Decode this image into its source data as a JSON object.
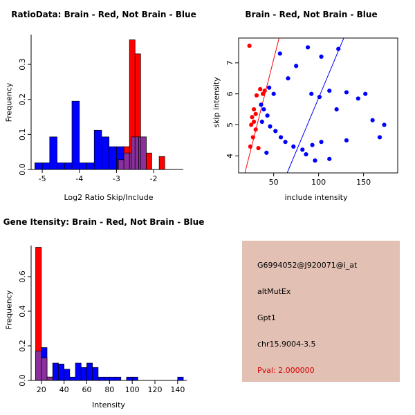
{
  "colors": {
    "brain_red": "#ff0000",
    "not_brain_blue": "#0000ff",
    "overlap_purple": "#8a2f9c",
    "axis_black": "#000000",
    "info_bg": "#e2c0b3",
    "pval_red": "#d40000"
  },
  "chart_data": [
    {
      "id": "ratio-hist",
      "type": "bar",
      "subtype": "overlaid-histogram",
      "title": "RatioData: Brain - Red, Not Brain - Blue",
      "xlabel": "Log2 Ratio Skip/Include",
      "ylabel": "Frequency",
      "xlim": [
        -5.3,
        -1.2
      ],
      "ylim": [
        0,
        0.385
      ],
      "xticks": [
        -5,
        -4,
        -3,
        -2
      ],
      "xticklabels": [
        "-5",
        "-4",
        "-3",
        "-2"
      ],
      "yticks": [
        0,
        0.1,
        0.2,
        0.3
      ],
      "yticklabels": [
        "0.0",
        "0.1",
        "0.2",
        "0.3"
      ],
      "grid": false,
      "box": false,
      "overlap_color": "#8a2f9c",
      "series": [
        {
          "name": "Not Brain",
          "color": "#0000ff",
          "bins": [
            [
              -5.2,
              -5.0,
              0.019
            ],
            [
              -5.0,
              -4.8,
              0.019
            ],
            [
              -4.8,
              -4.6,
              0.093
            ],
            [
              -4.6,
              -4.4,
              0.019
            ],
            [
              -4.4,
              -4.2,
              0.019
            ],
            [
              -4.2,
              -4.0,
              0.195
            ],
            [
              -4.0,
              -3.8,
              0.019
            ],
            [
              -3.8,
              -3.6,
              0.019
            ],
            [
              -3.6,
              -3.4,
              0.112
            ],
            [
              -3.4,
              -3.2,
              0.093
            ],
            [
              -3.2,
              -3.0,
              0.065
            ],
            [
              -3.0,
              -2.8,
              0.065
            ],
            [
              -2.8,
              -2.6,
              0.047
            ],
            [
              -2.6,
              -2.4,
              0.093
            ],
            [
              -2.4,
              -2.2,
              0.093
            ]
          ]
        },
        {
          "name": "Brain",
          "color": "#ff0000",
          "bins": [
            [
              -2.95,
              -2.8,
              0.028
            ],
            [
              -2.8,
              -2.65,
              0.065
            ],
            [
              -2.65,
              -2.5,
              0.37
            ],
            [
              -2.5,
              -2.35,
              0.33
            ],
            [
              -2.35,
              -2.2,
              0.093
            ],
            [
              -2.2,
              -2.05,
              0.047
            ],
            [
              -1.85,
              -1.7,
              0.037
            ]
          ]
        }
      ]
    },
    {
      "id": "intensity-scatter",
      "type": "scatter",
      "title": "Brain - Red, Not Brain - Blue",
      "xlabel": "include intensity",
      "ylabel": "skip intensity",
      "xlim": [
        11,
        188
      ],
      "ylim": [
        3.45,
        7.8
      ],
      "xticks": [
        50,
        100,
        150
      ],
      "xticklabels": [
        "50",
        "100",
        "150"
      ],
      "yticks": [
        4,
        5,
        6,
        7
      ],
      "yticklabels": [
        "4",
        "5",
        "6",
        "7"
      ],
      "grid": false,
      "box": true,
      "lines": [
        {
          "name": "brain-fit-line",
          "color": "#ff0000",
          "x": [
            18,
            56
          ],
          "y": [
            3.45,
            7.8
          ]
        },
        {
          "name": "not-brain-fit-line",
          "color": "#0000ff",
          "x": [
            65,
            128
          ],
          "y": [
            3.45,
            7.8
          ]
        }
      ],
      "series": [
        {
          "name": "Not Brain",
          "color": "#0000ff",
          "points": [
            [
              57,
              7.3
            ],
            [
              88,
              7.5
            ],
            [
              103,
              7.2
            ],
            [
              122,
              7.45
            ],
            [
              75,
              6.9
            ],
            [
              66,
              6.5
            ],
            [
              45,
              6.2
            ],
            [
              50,
              6.0
            ],
            [
              92,
              6.0
            ],
            [
              101,
              5.9
            ],
            [
              112,
              6.1
            ],
            [
              131,
              6.05
            ],
            [
              144,
              5.85
            ],
            [
              152,
              6.0
            ],
            [
              120,
              5.5
            ],
            [
              160,
              5.15
            ],
            [
              173,
              5.0
            ],
            [
              168,
              4.6
            ],
            [
              36,
              5.65
            ],
            [
              39,
              5.5
            ],
            [
              43,
              5.3
            ],
            [
              37,
              5.1
            ],
            [
              46,
              4.95
            ],
            [
              52,
              4.8
            ],
            [
              58,
              4.6
            ],
            [
              63,
              4.45
            ],
            [
              72,
              4.3
            ],
            [
              82,
              4.2
            ],
            [
              93,
              4.35
            ],
            [
              103,
              4.45
            ],
            [
              112,
              3.9
            ],
            [
              96,
              3.85
            ],
            [
              131,
              4.5
            ],
            [
              42,
              4.1
            ],
            [
              86,
              4.05
            ]
          ]
        },
        {
          "name": "Brain",
          "color": "#ff0000",
          "points": [
            [
              23,
              7.55
            ],
            [
              35,
              6.15
            ],
            [
              40,
              6.1
            ],
            [
              38,
              6.0
            ],
            [
              31,
              5.95
            ],
            [
              28,
              5.5
            ],
            [
              30,
              5.35
            ],
            [
              26,
              5.25
            ],
            [
              28,
              5.1
            ],
            [
              25,
              5.0
            ],
            [
              30,
              4.85
            ],
            [
              27,
              4.6
            ],
            [
              24,
              4.3
            ],
            [
              33,
              4.25
            ]
          ]
        }
      ]
    },
    {
      "id": "gene-intensity-hist",
      "type": "bar",
      "subtype": "overlaid-histogram",
      "title": "Gene Itensity: Brain - Red, Not Brain - Blue",
      "xlabel": "Intensity",
      "ylabel": "Frequency",
      "xlim": [
        11,
        148
      ],
      "ylim": [
        0,
        0.78
      ],
      "xticks": [
        20,
        40,
        60,
        80,
        100,
        120,
        140
      ],
      "xticklabels": [
        "20",
        "40",
        "60",
        "80",
        "100",
        "120",
        "140"
      ],
      "yticks": [
        0,
        0.2,
        0.4,
        0.6
      ],
      "yticklabels": [
        "0.0",
        "0.2",
        "0.4",
        "0.6"
      ],
      "grid": false,
      "box": false,
      "overlap_color": "#8a2f9c",
      "series": [
        {
          "name": "Not Brain",
          "color": "#0000ff",
          "bins": [
            [
              15,
              20,
              0.17
            ],
            [
              20,
              25,
              0.19
            ],
            [
              25,
              30,
              0.019
            ],
            [
              30,
              35,
              0.1
            ],
            [
              35,
              40,
              0.095
            ],
            [
              40,
              45,
              0.065
            ],
            [
              45,
              50,
              0.019
            ],
            [
              50,
              55,
              0.1
            ],
            [
              55,
              60,
              0.075
            ],
            [
              60,
              65,
              0.1
            ],
            [
              65,
              70,
              0.075
            ],
            [
              70,
              75,
              0.019
            ],
            [
              75,
              80,
              0.019
            ],
            [
              80,
              85,
              0.019
            ],
            [
              85,
              90,
              0.019
            ],
            [
              95,
              100,
              0.019
            ],
            [
              100,
              105,
              0.019
            ],
            [
              140,
              145,
              0.019
            ]
          ]
        },
        {
          "name": "Brain",
          "color": "#ff0000",
          "bins": [
            [
              15,
              20,
              0.77
            ],
            [
              20,
              25,
              0.13
            ],
            [
              25,
              30,
              0.019
            ]
          ]
        }
      ]
    }
  ],
  "info": {
    "bg": "#e2c0b3",
    "lines": [
      "G6994052@J920071@i_at",
      "altMutEx",
      "Gpt1",
      "chr15.9004-3.5"
    ],
    "pval": "Pval: 2.000000",
    "pval_color": "#d40000"
  }
}
